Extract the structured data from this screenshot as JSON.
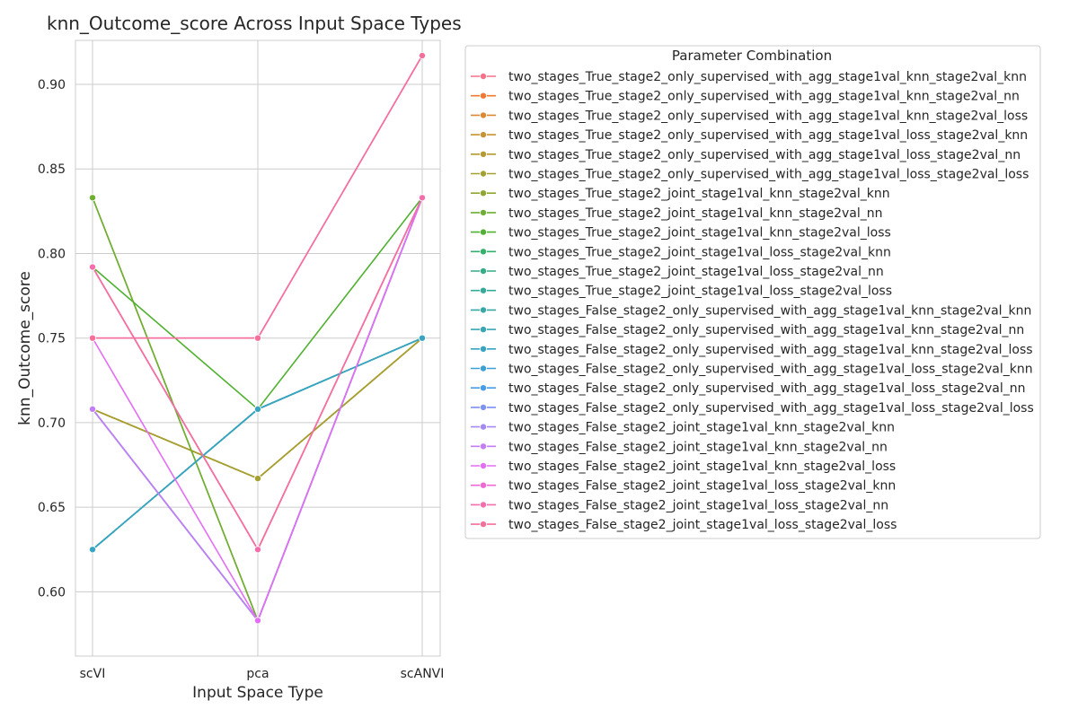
{
  "chart_data": {
    "type": "line",
    "title": "knn_Outcome_score Across Input Space Types",
    "xlabel": "Input Space Type",
    "ylabel": "knn_Outcome_score",
    "categories": [
      "scVI",
      "pca",
      "scANVI"
    ],
    "ylim": [
      0.562,
      0.926
    ],
    "yticks": [
      "0.60",
      "0.65",
      "0.70",
      "0.75",
      "0.80",
      "0.85",
      "0.90"
    ],
    "grid": true,
    "legend_title": "Parameter Combination",
    "legend_position": "outside-right",
    "series": [
      {
        "name": "two_stages_True_stage2_only_supervised_with_agg_stage1val_knn_stage2val_knn",
        "color": "#f77189",
        "values": [
          0.792,
          0.625,
          0.833
        ]
      },
      {
        "name": "two_stages_True_stage2_only_supervised_with_agg_stage1val_knn_stage2val_nn",
        "color": "#f37932",
        "values": [
          0.792,
          0.625,
          0.833
        ]
      },
      {
        "name": "two_stages_True_stage2_only_supervised_with_agg_stage1val_knn_stage2val_loss",
        "color": "#dc8932",
        "values": [
          0.708,
          0.667,
          0.75
        ]
      },
      {
        "name": "two_stages_True_stage2_only_supervised_with_agg_stage1val_loss_stage2val_knn",
        "color": "#c69432",
        "values": [
          0.708,
          0.667,
          0.75
        ]
      },
      {
        "name": "two_stages_True_stage2_only_supervised_with_agg_stage1val_loss_stage2val_nn",
        "color": "#b49a31",
        "values": [
          0.708,
          0.667,
          0.75
        ]
      },
      {
        "name": "two_stages_True_stage2_only_supervised_with_agg_stage1val_loss_stage2val_loss",
        "color": "#a4a031",
        "values": [
          0.708,
          0.667,
          0.75
        ]
      },
      {
        "name": "two_stages_True_stage2_joint_stage1val_knn_stage2val_knn",
        "color": "#8fa731",
        "values": [
          0.833,
          0.583,
          0.833
        ]
      },
      {
        "name": "two_stages_True_stage2_joint_stage1val_knn_stage2val_nn",
        "color": "#6eae32",
        "values": [
          0.833,
          0.583,
          0.833
        ]
      },
      {
        "name": "two_stages_True_stage2_joint_stage1val_knn_stage2val_loss",
        "color": "#50b131",
        "values": [
          0.792,
          0.708,
          0.833
        ]
      },
      {
        "name": "two_stages_True_stage2_joint_stage1val_loss_stage2val_knn",
        "color": "#34af6c",
        "values": [
          0.625,
          0.708,
          0.75
        ]
      },
      {
        "name": "two_stages_True_stage2_joint_stage1val_loss_stage2val_nn",
        "color": "#35ac88",
        "values": [
          0.625,
          0.708,
          0.75
        ]
      },
      {
        "name": "two_stages_True_stage2_joint_stage1val_loss_stage2val_loss",
        "color": "#36aa98",
        "values": [
          0.625,
          0.708,
          0.75
        ]
      },
      {
        "name": "two_stages_False_stage2_only_supervised_with_agg_stage1val_knn_stage2val_knn",
        "color": "#37a8a6",
        "values": [
          0.625,
          0.708,
          0.75
        ]
      },
      {
        "name": "two_stages_False_stage2_only_supervised_with_agg_stage1val_knn_stage2val_nn",
        "color": "#38a6b3",
        "values": [
          0.625,
          0.708,
          0.75
        ]
      },
      {
        "name": "two_stages_False_stage2_only_supervised_with_agg_stage1val_knn_stage2val_loss",
        "color": "#39a3c2",
        "values": [
          0.625,
          0.708,
          0.75
        ]
      },
      {
        "name": "two_stages_False_stage2_only_supervised_with_agg_stage1val_loss_stage2val_knn",
        "color": "#3ba0d6",
        "values": [
          0.708,
          0.583,
          0.833
        ]
      },
      {
        "name": "two_stages_False_stage2_only_supervised_with_agg_stage1val_loss_stage2val_nn",
        "color": "#489ce8",
        "values": [
          0.708,
          0.583,
          0.833
        ]
      },
      {
        "name": "two_stages_False_stage2_only_supervised_with_agg_stage1val_loss_stage2val_loss",
        "color": "#7e91f4",
        "values": [
          0.708,
          0.583,
          0.833
        ]
      },
      {
        "name": "two_stages_False_stage2_joint_stage1val_knn_stage2val_knn",
        "color": "#a58af4",
        "values": [
          0.708,
          0.583,
          0.833
        ]
      },
      {
        "name": "two_stages_False_stage2_joint_stage1val_knn_stage2val_nn",
        "color": "#c47ef4",
        "values": [
          0.708,
          0.583,
          0.833
        ]
      },
      {
        "name": "two_stages_False_stage2_joint_stage1val_knn_stage2val_loss",
        "color": "#e36ef4",
        "values": [
          0.75,
          0.583,
          0.833
        ]
      },
      {
        "name": "two_stages_False_stage2_joint_stage1val_loss_stage2val_knn",
        "color": "#f167d3",
        "values": [
          0.75,
          0.75,
          0.917
        ]
      },
      {
        "name": "two_stages_False_stage2_joint_stage1val_loss_stage2val_nn",
        "color": "#f46dac",
        "values": [
          0.792,
          0.625,
          0.833
        ]
      },
      {
        "name": "two_stages_False_stage2_joint_stage1val_loss_stage2val_loss",
        "color": "#f56f9b",
        "values": [
          0.75,
          0.75,
          0.917
        ]
      }
    ]
  }
}
